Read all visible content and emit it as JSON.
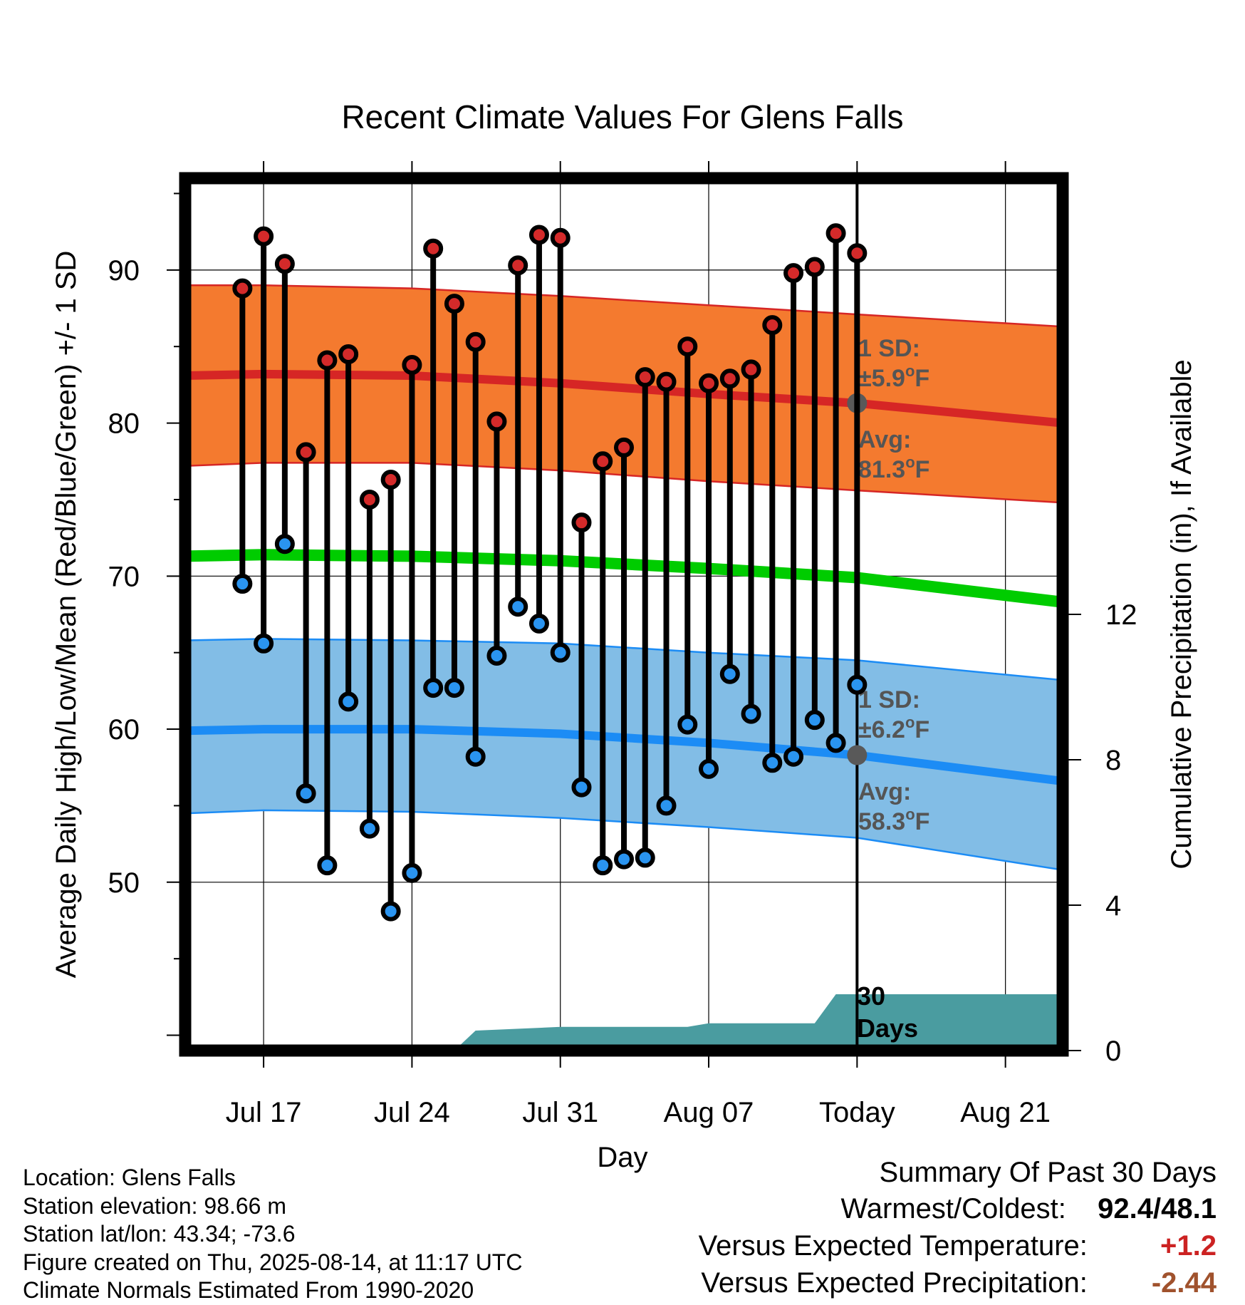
{
  "chart_data": {
    "type": "line",
    "title": "Recent Climate Values For Glens Falls",
    "xlabel": "Day",
    "ylabel": "Average Daily High/Low/Mean (Red/Blue/Green) +/- 1 SD",
    "y2label": "Cumulative Precipitation (in), If Available",
    "x_ticks": [
      "Jul 17",
      "Jul 24",
      "Jul 31",
      "Aug 07",
      "Today",
      "Aug 21"
    ],
    "y_ticks": [
      "50",
      "60",
      "70",
      "80",
      "90"
    ],
    "y2_ticks": [
      "0",
      "4",
      "8",
      "12"
    ],
    "ylim": [
      39,
      96
    ],
    "y2lim": [
      0,
      24
    ],
    "xlim": [
      "Jul 13.3",
      "Aug 23.7"
    ],
    "grid": true,
    "normals": {
      "days": [
        "Jul 13.3",
        "Jul 17",
        "Jul 24",
        "Jul 31",
        "Aug 07",
        "Aug 14",
        "Aug 23.7"
      ],
      "high_avg": [
        83.1,
        83.2,
        83.1,
        82.6,
        81.9,
        81.3,
        80.0
      ],
      "high_upper": [
        89.0,
        89.0,
        88.8,
        88.3,
        87.7,
        87.1,
        86.3
      ],
      "high_lower": [
        77.2,
        77.4,
        77.4,
        76.9,
        76.2,
        75.6,
        74.8
      ],
      "mean_avg": [
        71.3,
        71.4,
        71.3,
        71.0,
        70.5,
        69.9,
        68.3
      ],
      "low_avg": [
        59.9,
        60.0,
        60.0,
        59.7,
        59.1,
        58.3,
        56.6
      ],
      "low_upper": [
        65.8,
        65.9,
        65.8,
        65.6,
        65.0,
        64.5,
        63.2
      ],
      "low_lower": [
        54.5,
        54.7,
        54.6,
        54.2,
        53.6,
        52.9,
        50.8
      ]
    },
    "daily": {
      "days": [
        "Jul 16",
        "Jul 17",
        "Jul 18",
        "Jul 19",
        "Jul 20",
        "Jul 21",
        "Jul 22",
        "Jul 23",
        "Jul 24",
        "Jul 25",
        "Jul 26",
        "Jul 27",
        "Jul 28",
        "Jul 29",
        "Jul 30",
        "Jul 31",
        "Aug 01",
        "Aug 02",
        "Aug 03",
        "Aug 04",
        "Aug 05",
        "Aug 06",
        "Aug 07",
        "Aug 08",
        "Aug 09",
        "Aug 10",
        "Aug 11",
        "Aug 12",
        "Aug 13",
        "Aug 14"
      ],
      "high": [
        88.8,
        92.2,
        90.4,
        78.1,
        84.1,
        84.5,
        75.0,
        76.3,
        83.8,
        91.4,
        87.8,
        85.3,
        80.1,
        90.3,
        92.3,
        92.1,
        73.5,
        77.5,
        78.4,
        83.0,
        82.7,
        85.0,
        82.6,
        82.9,
        83.5,
        86.4,
        89.8,
        90.2,
        92.4,
        91.1
      ],
      "low": [
        69.5,
        65.6,
        72.1,
        55.8,
        51.1,
        61.8,
        53.5,
        48.1,
        50.6,
        62.7,
        62.7,
        58.2,
        64.8,
        68.0,
        66.9,
        65.0,
        56.2,
        51.1,
        51.5,
        51.6,
        55.0,
        60.3,
        57.4,
        63.6,
        61.0,
        57.8,
        58.2,
        60.6,
        59.1,
        62.9
      ]
    },
    "precipitation": {
      "days": [
        "Jul 26",
        "Jul 27",
        "Jul 31",
        "Aug 06",
        "Aug 07",
        "Aug 12",
        "Aug 13",
        "Aug 23.7"
      ],
      "cumulative": [
        0.0,
        0.55,
        0.65,
        0.65,
        0.75,
        0.75,
        1.55,
        1.55
      ]
    },
    "colors": {
      "high_band": "#f47a2f",
      "high_line": "#d62625",
      "low_band": "#82bde6",
      "low_line": "#1c8cf5",
      "mean_line": "#00cc00",
      "precip": "#4a9ca0",
      "high_marker": "#d42a2a",
      "low_marker": "#2a94f0",
      "annotation_text": "#555555",
      "today_marker": "#595959"
    },
    "annotations": {
      "high_sd_title": "1 SD:",
      "high_sd_value": "±5.9",
      "high_avg_title": "Avg:",
      "high_avg_value": "81.3",
      "low_sd_title": "1 SD:",
      "low_sd_value": "±6.2",
      "low_avg_title": "Avg:",
      "low_avg_value": "58.3",
      "degree": "o",
      "unit": "F",
      "days_line1": "30",
      "days_line2": "Days"
    }
  },
  "station_info": {
    "location": "Location: Glens Falls",
    "elevation": "Station elevation: 98.66 m",
    "latlon": "Station lat/lon: 43.34; -73.6",
    "created": "Figure created on Thu, 2025-08-14, at 11:17 UTC",
    "normals": "Climate Normals Estimated From 1990-2020"
  },
  "summary": {
    "title": "Summary Of Past 30 Days",
    "warmest_label": "Warmest/Coldest:",
    "warmest_value": "92.4/48.1",
    "temp_label": "Versus Expected Temperature:",
    "temp_value": "+1.2",
    "temp_color": "#cc2222",
    "precip_label": "Versus Expected Precipitation:",
    "precip_value": "-2.44",
    "precip_color": "#a0522d"
  }
}
